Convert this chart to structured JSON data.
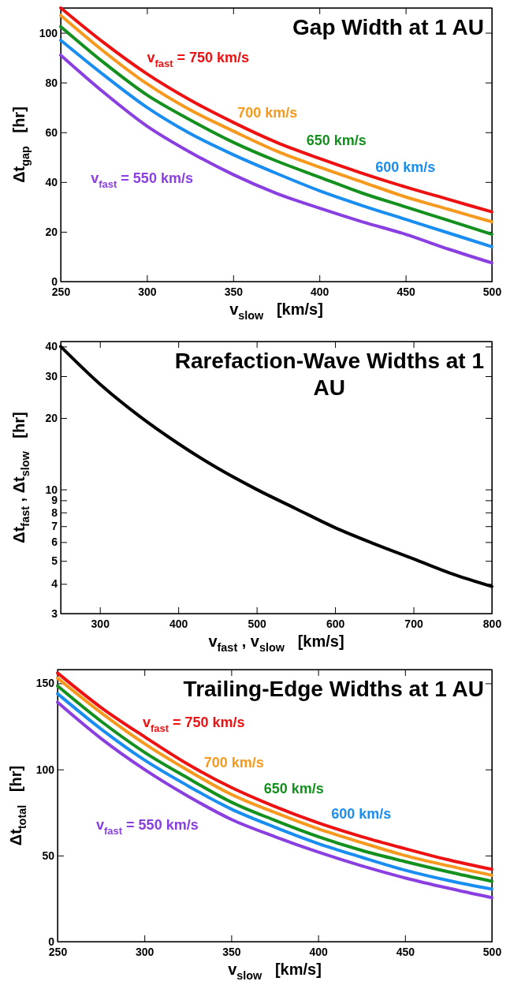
{
  "chart_data": [
    {
      "type": "line",
      "title": "Gap Width at 1 AU",
      "xlabel": "v$_{slow}$   [km/s]",
      "ylabel": "Δt$_{gap}$   [hr]",
      "x": [
        250,
        275,
        300,
        325,
        350,
        375,
        400,
        425,
        450,
        475,
        500
      ],
      "xlim": [
        250,
        500
      ],
      "xticks": [
        250,
        300,
        350,
        400,
        450,
        500
      ],
      "ylim": [
        0,
        110
      ],
      "yticks": [
        0,
        20,
        40,
        60,
        80,
        100
      ],
      "series": [
        {
          "name": "v$_{fast}$ = 750 km/s",
          "color": "#ee1111",
          "values": [
            110,
            96,
            83.5,
            73,
            64,
            56,
            49.5,
            43.5,
            38,
            33,
            28
          ]
        },
        {
          "name": "700 km/s",
          "color": "#f59a1e",
          "values": [
            107,
            92.5,
            79.5,
            69,
            60.5,
            52.5,
            46,
            40,
            34,
            29,
            24
          ]
        },
        {
          "name": "650 km/s",
          "color": "#13901e",
          "values": [
            102.5,
            88,
            75,
            65,
            56,
            48.5,
            42,
            35.5,
            30,
            24.5,
            19
          ]
        },
        {
          "name": "600 km/s",
          "color": "#1a8ef0",
          "values": [
            97,
            83,
            70,
            59.5,
            51,
            43.5,
            36.5,
            30.5,
            25,
            19.5,
            14
          ]
        },
        {
          "name": "v$_{fast}$ = 550 km/s",
          "color": "#8a3fe0",
          "values": [
            91,
            76,
            62.5,
            52,
            43,
            35.5,
            29.5,
            24,
            19,
            13,
            7.5
          ]
        }
      ]
    },
    {
      "type": "line",
      "title": "Rarefaction-Wave Widths at 1 AU",
      "xlabel": "v$_{fast}$ , v$_{slow}$   [km/s]",
      "ylabel": "Δt$_{fast}$ , Δt$_{slow}$   [hr]",
      "log": true,
      "x": [
        250,
        300,
        350,
        400,
        450,
        500,
        550,
        600,
        650,
        700,
        750,
        800
      ],
      "xlim": [
        250,
        800
      ],
      "xticks": [
        300,
        400,
        500,
        600,
        700,
        800
      ],
      "ylim": [
        3,
        42
      ],
      "yticks": [
        3,
        4,
        5,
        6,
        7,
        8,
        9,
        10,
        20,
        30,
        40
      ],
      "series": [
        {
          "color": "#000000",
          "values": [
            40,
            27.8,
            20.4,
            15.6,
            12.3,
            10,
            8.3,
            6.9,
            5.9,
            5.1,
            4.4,
            3.9
          ]
        }
      ]
    },
    {
      "type": "line",
      "title": "Trailing-Edge Widths at 1 AU",
      "xlabel": "v$_{slow}$   [km/s]",
      "ylabel": "Δt$_{total}$   [hr]",
      "x": [
        250,
        275,
        300,
        325,
        350,
        375,
        400,
        425,
        450,
        475,
        500
      ],
      "xlim": [
        250,
        500
      ],
      "xticks": [
        250,
        300,
        350,
        400,
        450,
        500
      ],
      "ylim": [
        0,
        158
      ],
      "yticks": [
        0,
        50,
        100,
        150
      ],
      "series": [
        {
          "name": "v$_{fast}$ = 750 km/s",
          "color": "#ee1111",
          "values": [
            156,
            136,
            119,
            103,
            89.5,
            78.5,
            69,
            61,
            54,
            47.5,
            42
          ]
        },
        {
          "name": "700 km/s",
          "color": "#f59a1e",
          "values": [
            153,
            133,
            115,
            99.5,
            85.5,
            75,
            65.5,
            57.5,
            50,
            44,
            38.5
          ]
        },
        {
          "name": "650 km/s",
          "color": "#13901e",
          "values": [
            148.5,
            128,
            110,
            95,
            81,
            70.5,
            61,
            53,
            46.5,
            40.5,
            35
          ]
        },
        {
          "name": "600 km/s",
          "color": "#1a8ef0",
          "values": [
            144,
            123.5,
            105.5,
            90.5,
            77,
            66.5,
            57,
            49,
            41.5,
            35.5,
            30.5
          ]
        },
        {
          "name": "v$_{fast}$ = 550 km/s",
          "color": "#8a3fe0",
          "values": [
            139,
            118,
            100,
            84.5,
            71,
            61,
            52,
            44,
            37,
            31,
            25.5
          ]
        }
      ]
    }
  ]
}
